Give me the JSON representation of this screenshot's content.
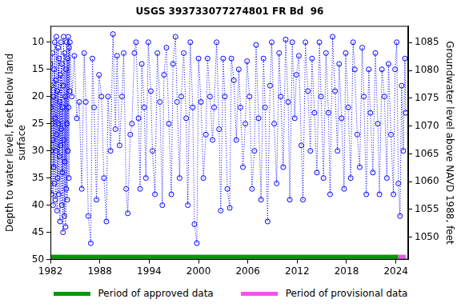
{
  "chart_data": {
    "type": "line",
    "title": "USGS 393733077274801 FR Bd  96",
    "y_label": [
      "Depth to water level, feet below land",
      "surface"
    ],
    "y2_label": "Groundwater level above NAVD 1988, feet",
    "xlim": [
      1982,
      2025.5
    ],
    "xticks": [
      1982,
      1988,
      1994,
      2000,
      2006,
      2012,
      2018,
      2024
    ],
    "ylim": [
      50,
      7
    ],
    "yticks": [
      10,
      15,
      20,
      25,
      30,
      35,
      40,
      45,
      50
    ],
    "y2lim": [
      1046,
      1088
    ],
    "y2ticks": [
      1050,
      1055,
      1060,
      1065,
      1070,
      1075,
      1080,
      1085
    ],
    "grid": false,
    "color": "#0000ff",
    "marker": "circle",
    "line_style": "dotted",
    "x": [
      1982.0,
      1982.04,
      1982.08,
      1982.12,
      1982.16,
      1982.2,
      1982.24,
      1982.28,
      1982.32,
      1982.36,
      1982.4,
      1982.44,
      1982.48,
      1982.52,
      1982.56,
      1982.6,
      1982.64,
      1982.68,
      1982.72,
      1982.76,
      1982.8,
      1982.84,
      1982.88,
      1982.92,
      1982.96,
      1983.0,
      1983.04,
      1983.08,
      1983.12,
      1983.16,
      1983.2,
      1983.24,
      1983.28,
      1983.32,
      1983.36,
      1983.4,
      1983.44,
      1983.48,
      1983.52,
      1983.56,
      1983.6,
      1983.64,
      1983.68,
      1983.72,
      1983.76,
      1983.8,
      1983.84,
      1983.88,
      1983.92,
      1983.96,
      1984.0,
      1984.04,
      1984.08,
      1984.12,
      1984.16,
      1984.2,
      1984.24,
      1984.28,
      1984.32,
      1984.36,
      1984.6,
      1984.9,
      1985.2,
      1985.5,
      1985.8,
      1986.1,
      1986.3,
      1986.6,
      1986.9,
      1987.1,
      1987.3,
      1987.6,
      1987.9,
      1988.2,
      1988.5,
      1988.8,
      1989.0,
      1989.3,
      1989.6,
      1989.9,
      1990.1,
      1990.4,
      1990.7,
      1990.9,
      1991.2,
      1991.4,
      1991.7,
      1991.9,
      1992.2,
      1992.4,
      1992.7,
      1992.9,
      1993.1,
      1993.4,
      1993.6,
      1993.9,
      1994.2,
      1994.4,
      1994.7,
      1995.0,
      1995.3,
      1995.6,
      1995.8,
      1996.1,
      1996.4,
      1996.7,
      1996.9,
      1997.2,
      1997.4,
      1997.7,
      1997.9,
      1998.2,
      1998.5,
      1998.7,
      1999.0,
      1999.3,
      1999.5,
      1999.8,
      2000.0,
      2000.3,
      2000.6,
      2000.9,
      2001.1,
      2001.4,
      2001.7,
      2001.9,
      2002.2,
      2002.5,
      2002.7,
      2003.0,
      2003.2,
      2003.5,
      2003.8,
      2004.0,
      2004.3,
      2004.6,
      2004.9,
      2005.1,
      2005.4,
      2005.7,
      2005.9,
      2006.2,
      2006.5,
      2006.8,
      2007.0,
      2007.3,
      2007.6,
      2007.9,
      2008.1,
      2008.4,
      2008.7,
      2008.9,
      2009.2,
      2009.5,
      2009.8,
      2010.0,
      2010.3,
      2010.6,
      2010.9,
      2011.1,
      2011.4,
      2011.7,
      2011.9,
      2012.2,
      2012.5,
      2012.7,
      2013.0,
      2013.3,
      2013.6,
      2013.8,
      2014.1,
      2014.4,
      2014.7,
      2014.9,
      2015.2,
      2015.5,
      2015.8,
      2016.0,
      2016.3,
      2016.6,
      2016.9,
      2017.1,
      2017.4,
      2017.7,
      2017.9,
      2018.2,
      2018.5,
      2018.8,
      2019.0,
      2019.3,
      2019.6,
      2019.9,
      2020.1,
      2020.4,
      2020.7,
      2020.9,
      2021.2,
      2021.5,
      2021.8,
      2022.0,
      2022.3,
      2022.6,
      2022.9,
      2023.1,
      2023.4,
      2023.7,
      2023.9,
      2024.1,
      2024.3,
      2024.5,
      2024.7,
      2024.9,
      2025.1,
      2025.2
    ],
    "values": [
      14,
      22,
      30,
      18,
      38,
      25,
      12,
      28,
      40,
      20,
      33,
      15,
      36,
      10,
      24,
      39,
      17,
      30,
      9,
      27,
      41,
      19,
      35,
      11,
      25,
      38,
      13,
      31,
      21,
      43,
      16,
      29,
      10,
      26,
      40,
      14,
      34,
      22,
      45,
      18,
      9,
      28,
      42,
      12,
      32,
      20,
      44,
      15,
      37,
      10,
      25,
      39,
      13,
      30,
      9,
      22,
      35,
      11,
      19,
      10,
      20,
      12.5,
      24,
      21,
      37,
      12,
      21,
      42,
      47,
      13,
      22,
      39,
      16,
      20,
      35,
      43,
      20,
      30,
      8.5,
      26,
      12.5,
      29,
      20,
      12,
      37,
      41.5,
      27,
      25,
      12,
      10,
      24,
      37,
      14,
      22,
      35,
      10,
      19,
      30,
      38,
      12,
      21,
      40,
      16,
      11,
      25,
      38,
      14,
      9,
      21,
      35,
      20,
      12,
      24,
      40,
      10,
      22,
      43.5,
      47,
      13,
      21,
      35,
      27,
      13,
      20,
      28,
      22,
      10,
      26,
      41,
      13,
      20,
      37,
      40.5,
      13,
      17,
      28,
      15,
      22,
      33,
      25,
      13.5,
      20,
      37,
      30,
      10.5,
      24,
      39,
      13,
      22,
      43,
      18,
      10,
      25,
      36,
      12,
      20,
      33,
      9.5,
      21,
      39,
      10,
      24,
      16,
      12.5,
      29,
      39,
      10,
      19,
      30,
      13,
      23,
      34,
      10,
      20,
      35,
      12,
      23,
      38,
      9,
      19,
      30,
      14,
      24,
      37,
      12,
      22,
      35,
      10,
      15,
      27,
      33,
      11,
      20,
      38,
      15,
      23,
      34,
      12,
      25,
      38,
      15,
      20,
      35,
      14,
      27,
      38,
      15,
      10,
      36,
      42,
      18,
      30,
      13,
      23
    ],
    "periods": [
      {
        "name": "Period of approved data",
        "color": "#009900",
        "start": 1982,
        "end": 2024.3
      },
      {
        "name": "Period of provisional data",
        "color": "#ee55ee",
        "start": 2024.3,
        "end": 2025.2
      }
    ]
  }
}
